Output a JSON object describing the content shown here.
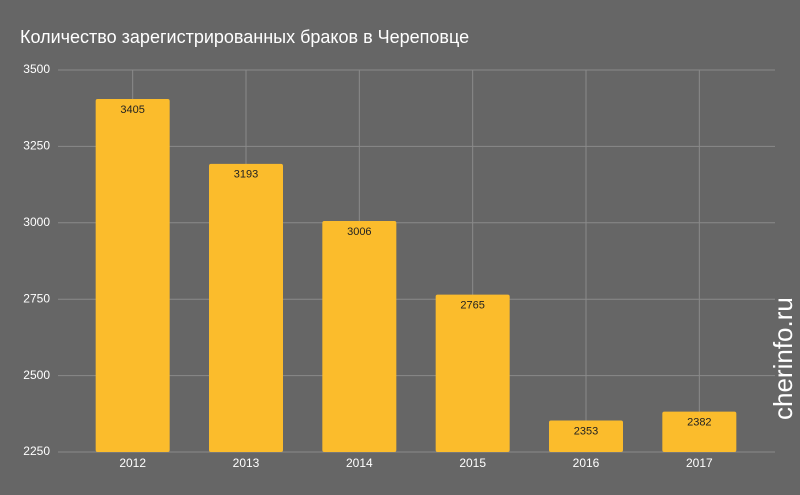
{
  "chart_data": {
    "type": "bar",
    "title": "Количество зарегистрированных браков в Череповце",
    "categories": [
      "2012",
      "2013",
      "2014",
      "2015",
      "2016",
      "2017"
    ],
    "values": [
      3405,
      3193,
      3006,
      2765,
      2353,
      2382
    ],
    "color": "#fbbc2c",
    "ylim": [
      2250,
      3500
    ],
    "yticks": [
      2250,
      2500,
      2750,
      3000,
      3250,
      3500
    ],
    "grid": true,
    "watermark": "cherinfo.ru"
  }
}
